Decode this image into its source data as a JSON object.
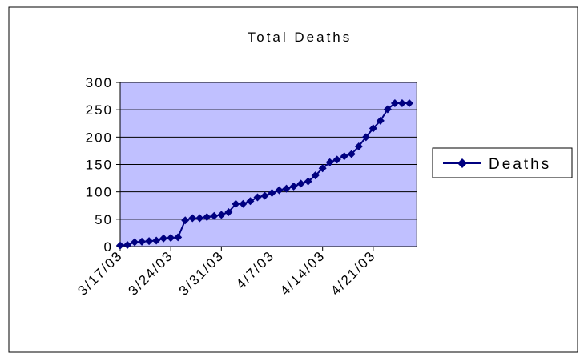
{
  "chart_data": {
    "type": "line",
    "title": "Total Deaths",
    "xlabel": "",
    "ylabel": "",
    "x_tick_labels": [
      "3/17/03",
      "3/24/03",
      "3/31/03",
      "4/7/03",
      "4/14/03",
      "4/21/03"
    ],
    "x_tick_dates": [
      "2003-03-17",
      "2003-03-24",
      "2003-03-31",
      "2003-04-07",
      "2003-04-14",
      "2003-04-21"
    ],
    "y_ticks": [
      0,
      50,
      100,
      150,
      200,
      250,
      300
    ],
    "xlim": [
      "2003-03-17",
      "2003-04-27"
    ],
    "ylim": [
      0,
      300
    ],
    "grid": "horizontal",
    "plot_background": "#c0c0ff",
    "legend_position": "right",
    "series": [
      {
        "name": "Deaths",
        "color": "#000080",
        "marker": "diamond",
        "x": [
          "2003-03-17",
          "2003-03-18",
          "2003-03-19",
          "2003-03-20",
          "2003-03-21",
          "2003-03-22",
          "2003-03-23",
          "2003-03-24",
          "2003-03-25",
          "2003-03-26",
          "2003-03-27",
          "2003-03-28",
          "2003-03-29",
          "2003-03-30",
          "2003-03-31",
          "2003-04-01",
          "2003-04-02",
          "2003-04-03",
          "2003-04-04",
          "2003-04-05",
          "2003-04-06",
          "2003-04-07",
          "2003-04-08",
          "2003-04-09",
          "2003-04-10",
          "2003-04-11",
          "2003-04-12",
          "2003-04-13",
          "2003-04-14",
          "2003-04-15",
          "2003-04-16",
          "2003-04-17",
          "2003-04-18",
          "2003-04-19",
          "2003-04-20",
          "2003-04-21",
          "2003-04-22",
          "2003-04-23",
          "2003-04-24",
          "2003-04-25",
          "2003-04-26"
        ],
        "values": [
          2,
          3,
          8,
          9,
          10,
          11,
          15,
          16,
          17,
          48,
          52,
          52,
          54,
          56,
          58,
          63,
          78,
          78,
          83,
          90,
          93,
          98,
          103,
          106,
          110,
          115,
          119,
          130,
          143,
          154,
          159,
          165,
          169,
          183,
          200,
          216,
          230,
          251,
          262,
          262,
          262
        ]
      }
    ]
  }
}
